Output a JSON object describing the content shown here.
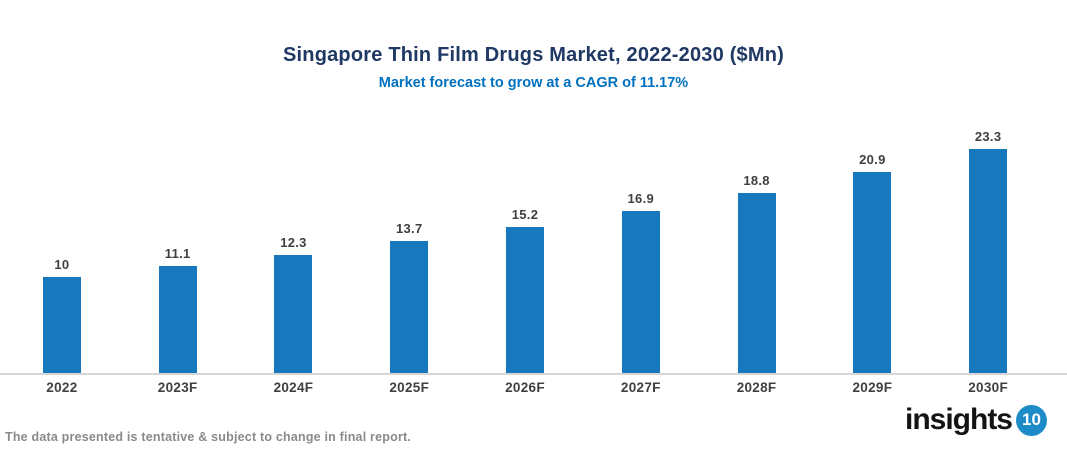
{
  "header": {
    "title": "Singapore Thin Film Drugs Market, 2022-2030 ($Mn)",
    "subtitle": "Market forecast to grow at a CAGR of 11.17%"
  },
  "chart_data": {
    "type": "bar",
    "categories": [
      "2022",
      "2023F",
      "2024F",
      "2025F",
      "2026F",
      "2027F",
      "2028F",
      "2029F",
      "2030F"
    ],
    "values": [
      10,
      11.1,
      12.3,
      13.7,
      15.2,
      16.9,
      18.8,
      20.9,
      23.3
    ],
    "title": "Singapore Thin Film Drugs Market, 2022-2030 ($Mn)",
    "subtitle": "Market forecast to grow at a CAGR of 11.17%",
    "xlabel": "",
    "ylabel": "",
    "ylim": [
      0,
      25
    ],
    "grid": false,
    "legend": "none",
    "value_labels_shown": true,
    "bar_color": "#1878BE"
  },
  "footer": {
    "disclaimer": "The data presented is tentative & subject to change in final report."
  },
  "logo": {
    "text": "insights",
    "badge": "10",
    "badge_color": "#1E8BC9"
  },
  "colors": {
    "title": "#1F3864",
    "subtitle": "#0070C0",
    "bar": "#1878BE",
    "axis_line": "#D6D6D6",
    "label": "#404040",
    "footer": "#8A8A8A"
  }
}
